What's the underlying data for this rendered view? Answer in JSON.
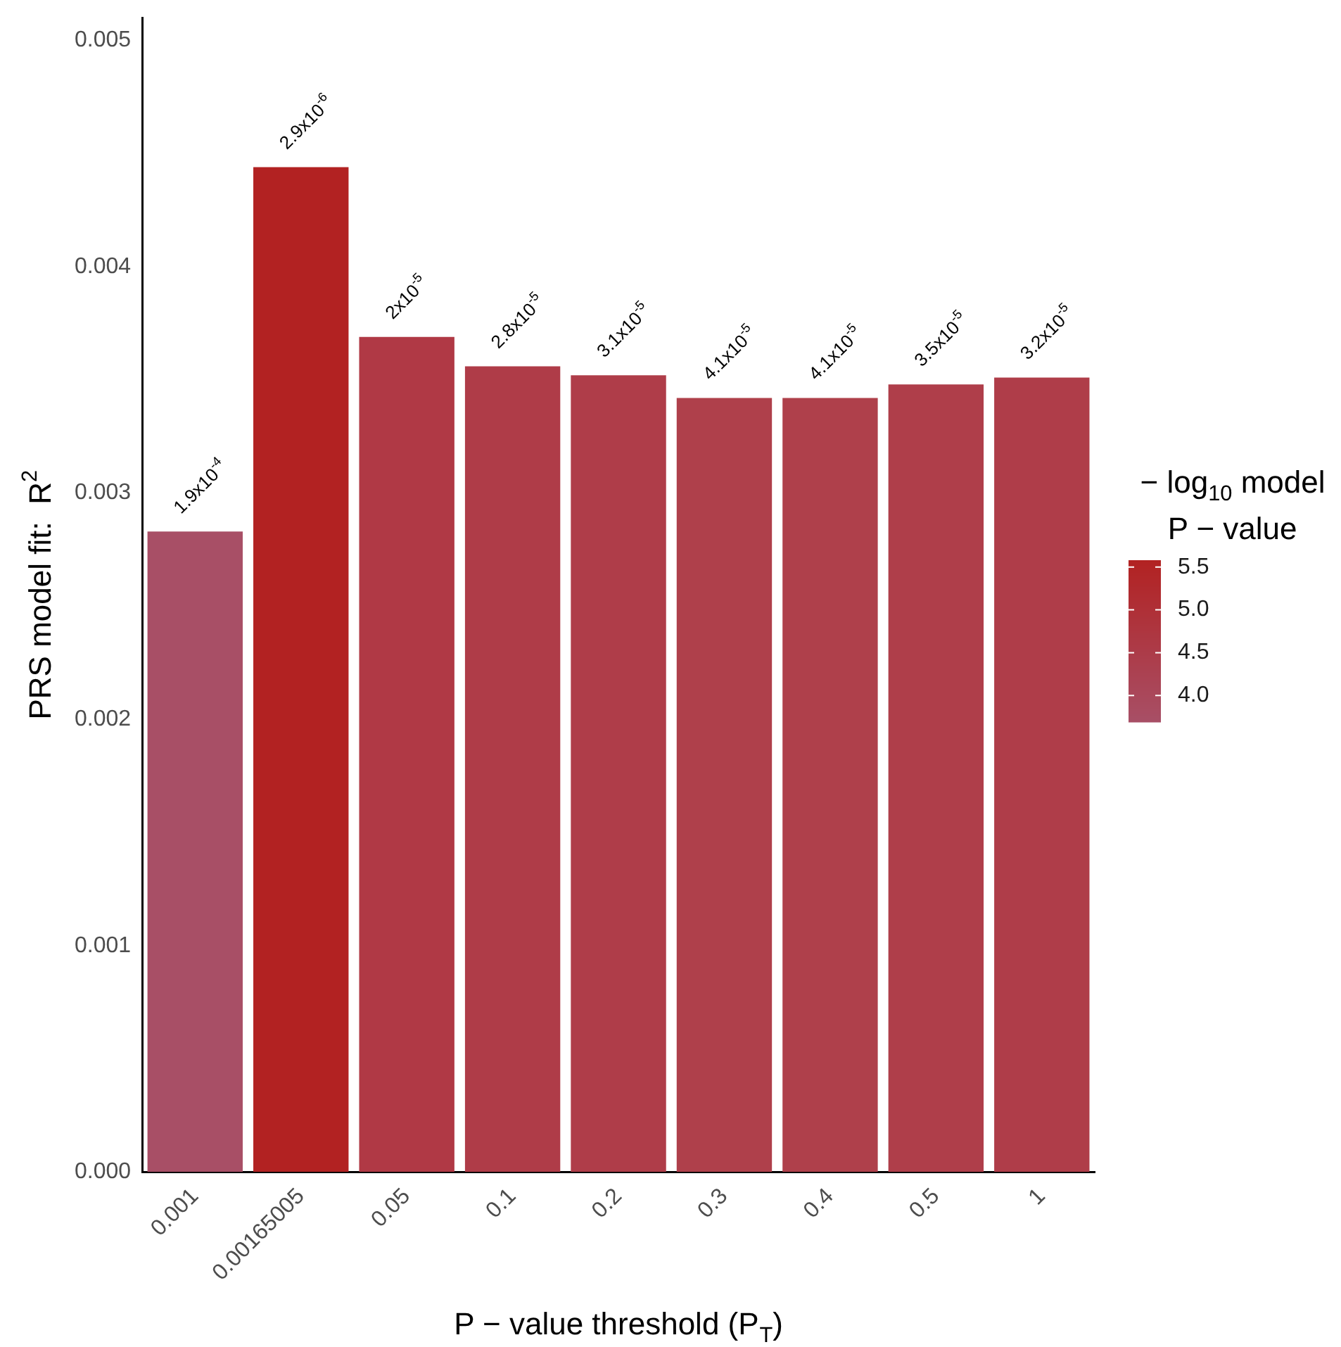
{
  "chart_data": {
    "type": "bar",
    "categories": [
      "0.001",
      "0.00165005",
      "0.05",
      "0.1",
      "0.2",
      "0.3",
      "0.4",
      "0.5",
      "1"
    ],
    "values": [
      0.00283,
      0.00444,
      0.00369,
      0.00356,
      0.00352,
      0.00342,
      0.00342,
      0.00348,
      0.00351
    ],
    "colors": [
      "#a84f66",
      "#b22222",
      "#b03945",
      "#af3c48",
      "#af3d49",
      "#af404b",
      "#af404b",
      "#af3e4a",
      "#af3d49"
    ],
    "annotations": [
      {
        "text": "1.9x10$^{-4}$",
        "x": "0.001",
        "y": 0.00283
      },
      {
        "text": "2.9x10$^{-6}$",
        "x": "0.00165005",
        "y": 0.00444
      },
      {
        "text": "2x10$^{-5}$",
        "x": "0.05",
        "y": 0.00369
      },
      {
        "text": "2.8x10$^{-5}$",
        "x": "0.1",
        "y": 0.00356
      },
      {
        "text": "3.1x10$^{-5}$",
        "x": "0.2",
        "y": 0.00352
      },
      {
        "text": "4.1x10$^{-5}$",
        "x": "0.3",
        "y": 0.00342
      },
      {
        "text": "4.1x10$^{-5}$",
        "x": "0.4",
        "y": 0.00342
      },
      {
        "text": "3.5x10$^{-5}$",
        "x": "0.5",
        "y": 0.00348
      },
      {
        "text": "3.2x10$^{-5}$",
        "x": "1",
        "y": 0.00351
      }
    ],
    "ylim": [
      0,
      0.0051
    ],
    "yticks": [
      {
        "value": 0,
        "label": "0.000"
      },
      {
        "value": 0.001,
        "label": "0.001"
      },
      {
        "value": 0.002,
        "label": "0.002"
      },
      {
        "value": 0.003,
        "label": "0.003"
      },
      {
        "value": 0.004,
        "label": "0.004"
      },
      {
        "value": 0.005,
        "label": "0.005"
      }
    ],
    "xlabel": "P − value threshold (P$_{T}$)",
    "ylabel": "PRS model fit:  R$^{2}$",
    "clabel": "− log$_{10}$ model\nP − value",
    "clim": [
      3.69,
      5.58
    ],
    "cticks": [
      {
        "value": 4,
        "label": "4.0"
      },
      {
        "value": 4.5,
        "label": "4.5"
      },
      {
        "value": 5,
        "label": "5.0"
      },
      {
        "value": 5.5,
        "label": "5.5"
      }
    ],
    "grid": false,
    "legend": false
  }
}
